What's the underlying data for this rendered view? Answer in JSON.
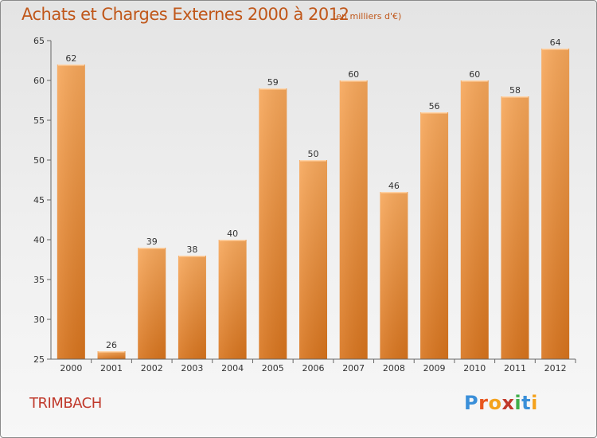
{
  "header": {
    "title": "Achats et Charges Externes 2000 à 2012",
    "subtitle": "(en milliers d'€)"
  },
  "footer": {
    "commune": "TRIMBACH",
    "logo_letters": [
      "P",
      "r",
      "o",
      "x",
      "i",
      "t",
      "i"
    ],
    "logo_colors": [
      "#3a8fd9",
      "#e8571f",
      "#f4a21c",
      "#c0392b",
      "#3fae49",
      "#3a8fd9",
      "#f4a21c"
    ]
  },
  "chart_data": {
    "type": "bar",
    "title": "Achats et Charges Externes 2000 à 2012",
    "subtitle": "(en milliers d'€)",
    "categories": [
      "2000",
      "2001",
      "2002",
      "2003",
      "2004",
      "2005",
      "2006",
      "2007",
      "2008",
      "2009",
      "2010",
      "2011",
      "2012"
    ],
    "values": [
      62,
      26,
      39,
      38,
      40,
      59,
      50,
      60,
      46,
      56,
      60,
      58,
      64
    ],
    "ylim": [
      25,
      65
    ],
    "yticks": [
      25,
      30,
      35,
      40,
      45,
      50,
      55,
      60,
      65
    ],
    "grid": false,
    "bar_color_top": "#f7a75a",
    "bar_color_bottom": "#d8741d",
    "axis_color": "#666666"
  }
}
